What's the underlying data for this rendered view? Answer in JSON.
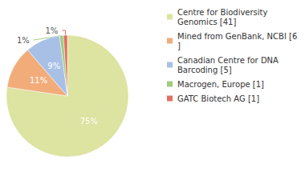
{
  "chart_data": {
    "type": "pie",
    "categories": [
      "Centre for Biodiversity Genomics [41]",
      "Mined from GenBank, NCBI [6]",
      "Canadian Centre for DNA Barcoding [5]",
      "Macrogen, Europe [1]",
      "GATC Biotech AG [1]"
    ],
    "values": [
      75,
      11,
      9,
      1,
      1
    ],
    "value_labels": [
      "75%",
      "11%",
      "9%",
      "1%",
      "1%"
    ],
    "colors": [
      "#dde3a0",
      "#f2ac7a",
      "#a8c0e6",
      "#a0cc80",
      "#e0705e"
    ],
    "data_labels": true,
    "legend": "right"
  }
}
